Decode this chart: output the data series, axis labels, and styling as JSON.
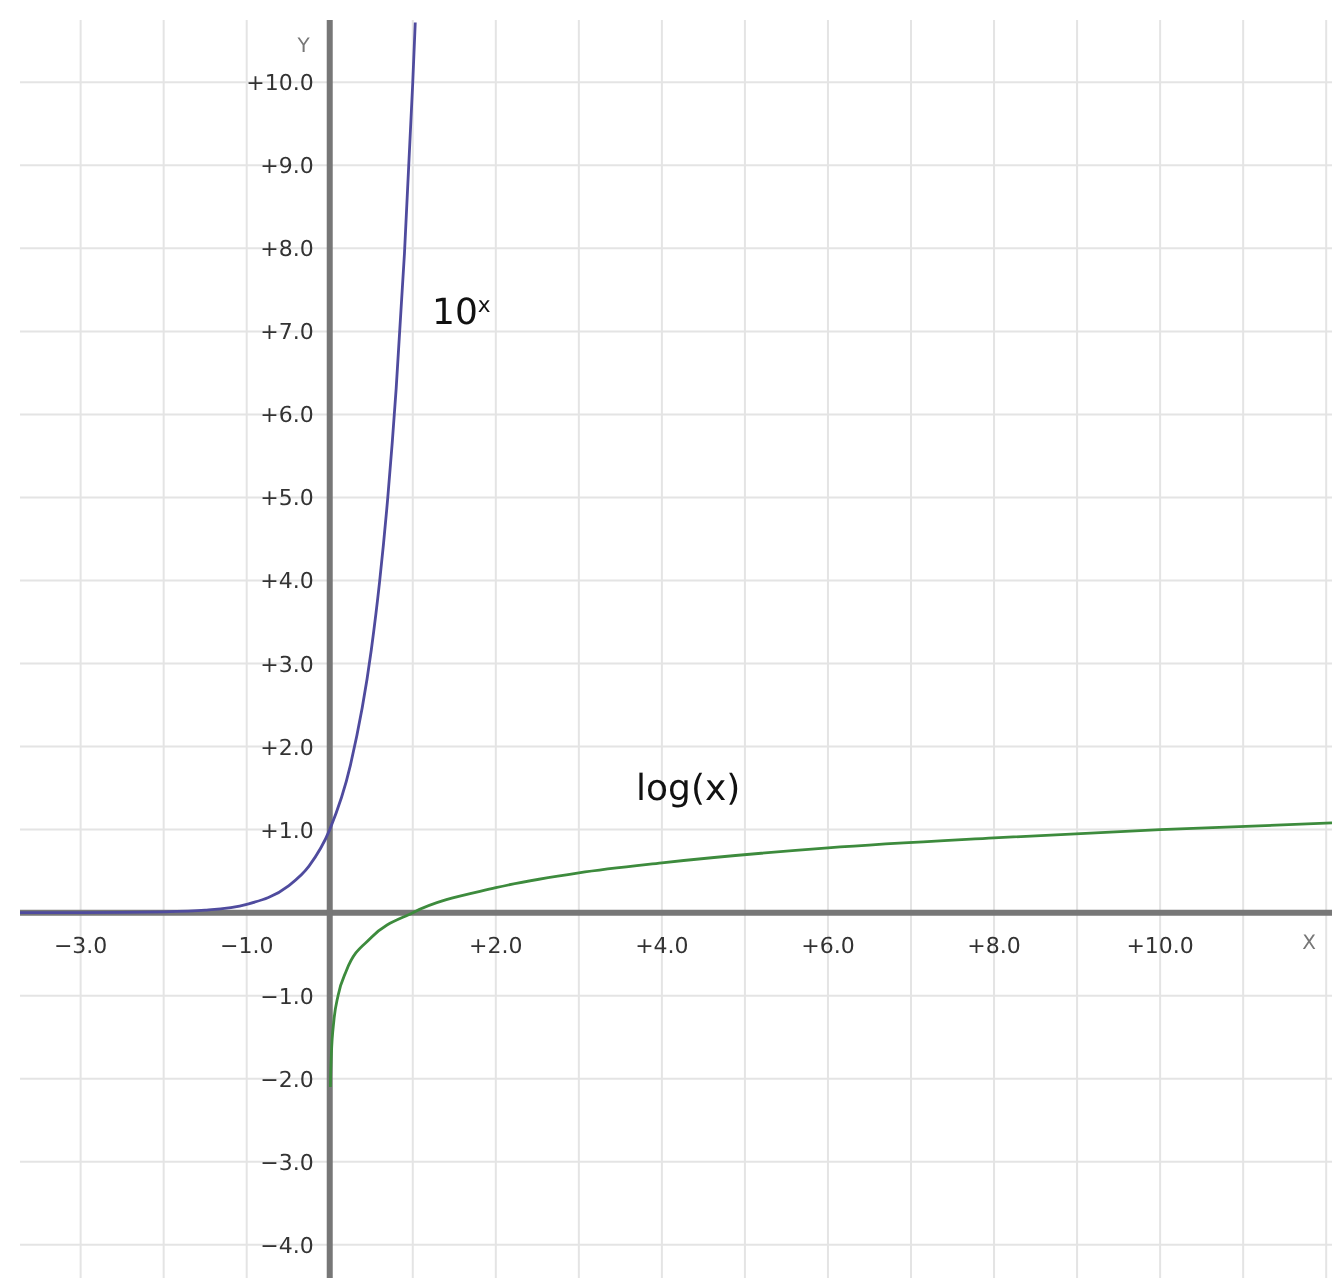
{
  "chart_data": {
    "type": "line",
    "xlabel": "X",
    "ylabel": "Y",
    "grid": true,
    "marker": "none",
    "line_style": "solid",
    "xlim": [
      -3.73,
      12.07
    ],
    "ylim": [
      -4.4,
      10.75
    ],
    "xticks": [
      {
        "value": -3,
        "label": "−3.0"
      },
      {
        "value": -2,
        "label": null
      },
      {
        "value": -1,
        "label": "−1.0"
      },
      {
        "value": 0,
        "label": null
      },
      {
        "value": 1,
        "label": null
      },
      {
        "value": 2,
        "label": "+2.0"
      },
      {
        "value": 3,
        "label": null
      },
      {
        "value": 4,
        "label": "+4.0"
      },
      {
        "value": 5,
        "label": null
      },
      {
        "value": 6,
        "label": "+6.0"
      },
      {
        "value": 7,
        "label": null
      },
      {
        "value": 8,
        "label": "+8.0"
      },
      {
        "value": 9,
        "label": null
      },
      {
        "value": 10,
        "label": "+10.0"
      },
      {
        "value": 11,
        "label": null
      },
      {
        "value": 12,
        "label": null
      }
    ],
    "yticks": [
      {
        "value": -4,
        "label": "−4.0"
      },
      {
        "value": -3,
        "label": "−3.0"
      },
      {
        "value": -2,
        "label": "−2.0"
      },
      {
        "value": -1,
        "label": "−1.0"
      },
      {
        "value": 0,
        "label": null
      },
      {
        "value": 1,
        "label": "+1.0"
      },
      {
        "value": 2,
        "label": "+2.0"
      },
      {
        "value": 3,
        "label": "+3.0"
      },
      {
        "value": 4,
        "label": "+4.0"
      },
      {
        "value": 5,
        "label": "+5.0"
      },
      {
        "value": 6,
        "label": "+6.0"
      },
      {
        "value": 7,
        "label": "+7.0"
      },
      {
        "value": 8,
        "label": "+8.0"
      },
      {
        "value": 9,
        "label": "+9.0"
      },
      {
        "value": 10,
        "label": "+10.0"
      }
    ],
    "series": [
      {
        "name": "10$^{x}$",
        "color": "#4f4b9e",
        "x": [
          -3.73,
          -3,
          -2,
          -1.5,
          -1,
          -0.5,
          -0.25,
          0,
          0.25,
          0.5,
          0.6,
          0.7,
          0.8,
          0.9,
          1.0,
          1.03
        ],
        "values": [
          0,
          0,
          0.01,
          0.03,
          0.1,
          0.32,
          0.56,
          1,
          1.78,
          3.16,
          3.98,
          5.01,
          6.31,
          7.94,
          10,
          10.72
        ]
      },
      {
        "name": "log(x)",
        "color": "#3d8b3d",
        "x": [
          0.008,
          0.01,
          0.02,
          0.05,
          0.1,
          0.2,
          0.5,
          1,
          2,
          3,
          4,
          6,
          8,
          10,
          12.07
        ],
        "values": [
          -2.1,
          -2,
          -1.7,
          -1.3,
          -1,
          -0.7,
          -0.3,
          0,
          0.3,
          0.48,
          0.6,
          0.78,
          0.9,
          1,
          1.08
        ]
      }
    ]
  }
}
